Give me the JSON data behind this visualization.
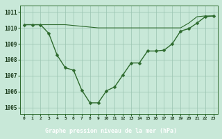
{
  "series1_x": [
    0,
    1,
    2,
    3,
    4,
    5,
    6,
    7,
    8,
    9,
    10,
    11,
    12,
    13,
    14,
    15,
    16,
    17,
    18,
    19,
    20,
    21,
    22,
    23
  ],
  "series1_y": [
    1010.2,
    1010.2,
    1010.2,
    1009.65,
    1008.3,
    1007.5,
    1007.35,
    1006.1,
    1005.3,
    1005.3,
    1006.05,
    1006.3,
    1007.05,
    1007.8,
    1007.8,
    1008.55,
    1008.55,
    1008.6,
    1009.0,
    1009.8,
    1009.95,
    1010.3,
    1010.7,
    1010.75
  ],
  "series2_x": [
    0,
    1,
    2,
    3,
    4,
    5,
    6,
    7,
    8,
    9,
    10,
    11,
    12,
    13,
    14,
    15,
    16,
    17,
    18,
    19,
    20,
    21,
    22,
    23
  ],
  "series2_y": [
    1010.2,
    1010.2,
    1010.2,
    1010.2,
    1010.2,
    1010.2,
    1010.15,
    1010.1,
    1010.05,
    1010.0,
    1010.0,
    1010.0,
    1010.0,
    1010.0,
    1010.0,
    1010.0,
    1010.0,
    1010.0,
    1010.0,
    1010.0,
    1010.3,
    1010.7,
    1010.75,
    1010.75
  ],
  "line_color": "#2d6a2d",
  "bg_color": "#c8e8d8",
  "footer_bg": "#2d6a2d",
  "footer_text": "Graphe pression niveau de la mer (hPa)",
  "footer_text_color": "#ffffff",
  "grid_color": "#9ac4b0",
  "ylim": [
    1004.6,
    1011.4
  ],
  "xlim": [
    -0.5,
    23.5
  ],
  "yticks": [
    1005,
    1006,
    1007,
    1008,
    1009,
    1010,
    1011
  ],
  "xticks": [
    0,
    1,
    2,
    3,
    4,
    5,
    6,
    7,
    8,
    9,
    10,
    11,
    12,
    13,
    14,
    15,
    16,
    17,
    18,
    19,
    20,
    21,
    22,
    23
  ],
  "tick_label_color": "#1a3a1a",
  "tick_fontsize": 4.5,
  "ytick_fontsize": 5.5,
  "footer_fontsize": 6.0
}
